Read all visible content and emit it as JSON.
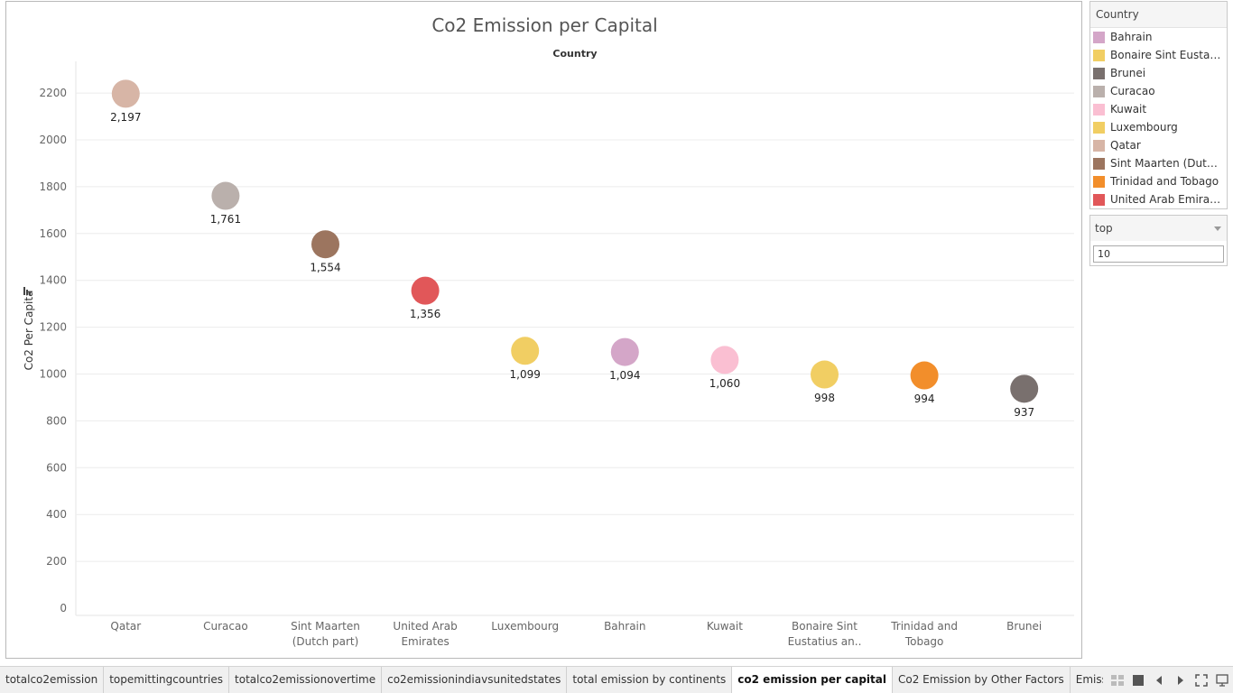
{
  "chart_data": {
    "type": "scatter",
    "title": "Co2 Emission per Capital",
    "header": "Country",
    "ylabel": "Co2 Per Capita",
    "ylim": [
      0,
      2300
    ],
    "yticks": [
      0,
      200,
      400,
      600,
      800,
      1000,
      1200,
      1400,
      1600,
      1800,
      2000,
      2200
    ],
    "grid": true,
    "categories": [
      "Qatar",
      "Curacao",
      "Sint Maarten (Dutch part)",
      "United Arab Emirates",
      "Luxembourg",
      "Bahrain",
      "Kuwait",
      "Bonaire Sint Eustatius an..",
      "Trinidad and Tobago",
      "Brunei"
    ],
    "category_lines": [
      [
        "Qatar"
      ],
      [
        "Curacao"
      ],
      [
        "Sint Maarten",
        "(Dutch part)"
      ],
      [
        "United Arab",
        "Emirates"
      ],
      [
        "Luxembourg"
      ],
      [
        "Bahrain"
      ],
      [
        "Kuwait"
      ],
      [
        "Bonaire Sint",
        "Eustatius an.."
      ],
      [
        "Trinidad and",
        "Tobago"
      ],
      [
        "Brunei"
      ]
    ],
    "values": [
      2197,
      1761,
      1554,
      1356,
      1099,
      1094,
      1060,
      998,
      994,
      937
    ],
    "value_labels": [
      "2,197",
      "1,761",
      "1,554",
      "1,356",
      "1,099",
      "1,094",
      "1,060",
      "998",
      "994",
      "937"
    ],
    "colors": [
      "#d7b5a6",
      "#bab0ac",
      "#9c755f",
      "#e15759",
      "#f1ce63",
      "#d4a6c8",
      "#fabfd2",
      "#f1ce63",
      "#f28e2b",
      "#79706e"
    ]
  },
  "legend": {
    "title": "Country",
    "items": [
      {
        "label": "Bahrain",
        "color": "#d4a6c8"
      },
      {
        "label": "Bonaire Sint Eustati..",
        "color": "#f1ce63"
      },
      {
        "label": "Brunei",
        "color": "#79706e"
      },
      {
        "label": "Curacao",
        "color": "#bab0ac"
      },
      {
        "label": "Kuwait",
        "color": "#fabfd2"
      },
      {
        "label": "Luxembourg",
        "color": "#f1ce63"
      },
      {
        "label": "Qatar",
        "color": "#d7b5a6"
      },
      {
        "label": "Sint Maarten (Dutch ..",
        "color": "#9c755f"
      },
      {
        "label": "Trinidad and Tobago",
        "color": "#f28e2b"
      },
      {
        "label": "United Arab Emirates",
        "color": "#e15759"
      }
    ]
  },
  "filter": {
    "label": "top",
    "value": "10"
  },
  "tabs": [
    {
      "label": "totalco2emission",
      "active": false
    },
    {
      "label": "topemittingcountries",
      "active": false
    },
    {
      "label": "totalco2emissionovertime",
      "active": false
    },
    {
      "label": "co2emissionindiavsunitedstates",
      "active": false
    },
    {
      "label": "total emission by continents",
      "active": false
    },
    {
      "label": "co2 emission per capital",
      "active": true
    },
    {
      "label": "Co2 Emission by Other Factors",
      "active": false
    },
    {
      "label": "Emission Rate by",
      "active": false
    }
  ]
}
